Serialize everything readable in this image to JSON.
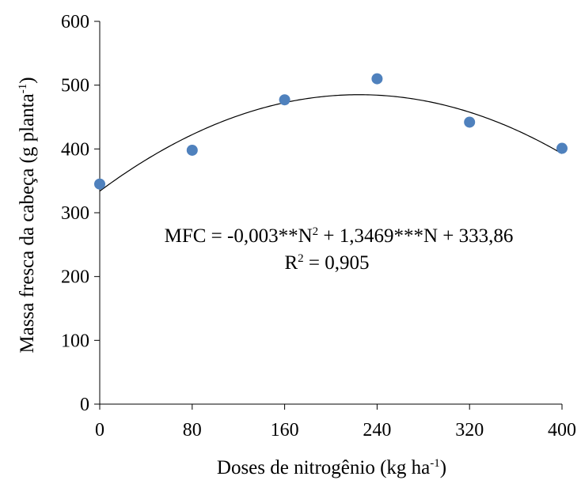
{
  "chart_data": {
    "type": "scatter",
    "xlabel": "Doses de nitrogênio (kg ha",
    "xlabel_sup": "-1",
    "xlabel_end": ")",
    "ylabel": "Massa fresca da cabeça (g planta",
    "ylabel_sup": "-1",
    "ylabel_end": ")",
    "x_ticks": [
      "0",
      "80",
      "160",
      "240",
      "320",
      "400"
    ],
    "y_ticks": [
      "0",
      "100",
      "200",
      "300",
      "400",
      "500",
      "600"
    ],
    "xlim": [
      0,
      400
    ],
    "ylim": [
      0,
      600
    ],
    "grid": false,
    "series": [
      {
        "x": [
          0,
          80,
          160,
          240,
          320,
          400
        ],
        "y": [
          345,
          398,
          477,
          510,
          442,
          401
        ],
        "color": "#4f81bd"
      }
    ],
    "trendline": {
      "type": "quadratic",
      "a": -0.003,
      "b": 1.3469,
      "c": 333.86,
      "color": "#000000"
    },
    "equation": {
      "part1": "MFC = -0,003**N",
      "sup1": "2",
      "part2": " + 1,3469***N + 333,86",
      "r2_part1": "R",
      "r2_sup": "2",
      "r2_part2": " = 0,905"
    }
  }
}
